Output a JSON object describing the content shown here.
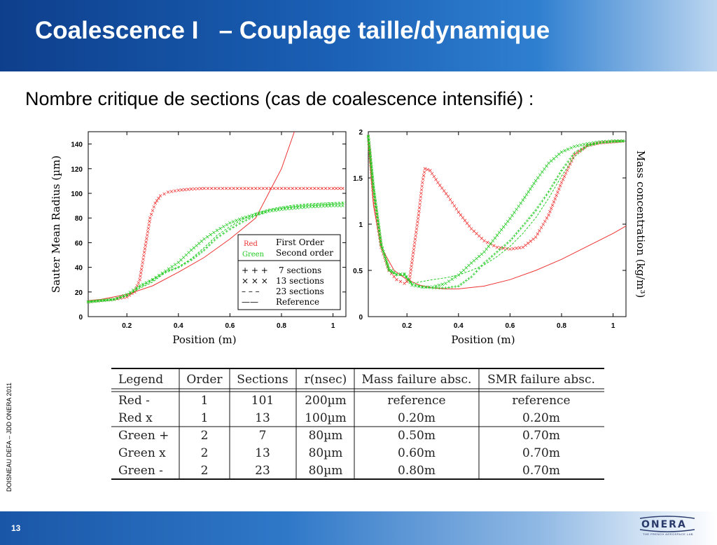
{
  "slide": {
    "title": "Coalescence I   – Couplage taille/dynamique",
    "subtitle": "Nombre critique de sections (cas de coalescence intensifié) :",
    "side_note": "DOISNEAU DEFA – JDD ONERA 2011",
    "page_number": "13",
    "logo_text": "ONERA",
    "logo_tagline": "THE FRENCH AEROSPACE LAB"
  },
  "colors": {
    "red": "#ee3333",
    "green": "#22cc22",
    "header_blue": "#1a5fb4"
  },
  "chart_data": [
    {
      "type": "line",
      "xlabel": "Position (m)",
      "ylabel": "Sauter Mean Radius (µm)",
      "xlim": [
        0.05,
        1.05
      ],
      "ylim": [
        0,
        150
      ],
      "xticks": [
        "0.2",
        "0.4",
        "0.6",
        "0.8",
        "1"
      ],
      "yticks": [
        "0",
        "20",
        "40",
        "60",
        "80",
        "100",
        "120",
        "140"
      ],
      "legend": {
        "color_rows": [
          {
            "key": "Red",
            "label": "First Order",
            "color": "#ee3333"
          },
          {
            "key": "Green",
            "label": "Second order",
            "color": "#22cc22"
          }
        ],
        "marker_rows": [
          {
            "symbol": "+ + +",
            "label": "7 sections"
          },
          {
            "symbol": "× × ×",
            "label": "13 sections"
          },
          {
            "symbol": "– – –",
            "label": "23 sections"
          },
          {
            "symbol": "——",
            "label": "Reference"
          }
        ]
      },
      "series": [
        {
          "color": "#ee3333",
          "style": "line",
          "x": [
            0.05,
            0.1,
            0.2,
            0.3,
            0.4,
            0.5,
            0.6,
            0.7,
            0.8,
            0.85
          ],
          "y": [
            13,
            14,
            18,
            25,
            36,
            48,
            63,
            80,
            120,
            150
          ]
        },
        {
          "color": "#ee3333",
          "style": "x",
          "x": [
            0.05,
            0.1,
            0.15,
            0.2,
            0.23,
            0.25,
            0.27,
            0.29,
            0.31,
            0.33,
            0.36,
            0.4,
            0.45,
            0.5,
            0.6,
            0.7,
            0.8,
            0.9,
            1.0,
            1.05
          ],
          "y": [
            12,
            13,
            14,
            16,
            20,
            30,
            55,
            80,
            92,
            98,
            101,
            102.5,
            103.5,
            104,
            104,
            104,
            104,
            104,
            104,
            104
          ]
        },
        {
          "color": "#22cc22",
          "style": "+",
          "x": [
            0.05,
            0.1,
            0.15,
            0.2,
            0.25,
            0.3,
            0.35,
            0.4,
            0.45,
            0.5,
            0.55,
            0.6,
            0.65,
            0.7,
            0.75,
            0.8,
            0.85,
            0.9,
            0.95,
            1.0,
            1.05
          ],
          "y": [
            12,
            13,
            14,
            17,
            24,
            30,
            36,
            40,
            46,
            54,
            64,
            71,
            77,
            82,
            86,
            88,
            89.5,
            90.5,
            91,
            91.5,
            92
          ]
        },
        {
          "color": "#22cc22",
          "style": "x",
          "x": [
            0.05,
            0.1,
            0.15,
            0.2,
            0.25,
            0.3,
            0.35,
            0.4,
            0.45,
            0.5,
            0.55,
            0.6,
            0.65,
            0.7,
            0.75,
            0.8,
            0.85,
            0.9,
            0.95,
            1.0,
            1.05
          ],
          "y": [
            12,
            13,
            14,
            18,
            25,
            30,
            37,
            44,
            54,
            63,
            70,
            76,
            80,
            83,
            85.5,
            87,
            88,
            89,
            89.5,
            90,
            90
          ]
        },
        {
          "color": "#22cc22",
          "style": "dash",
          "x": [
            0.05,
            0.1,
            0.15,
            0.2,
            0.25,
            0.3,
            0.35,
            0.4,
            0.45,
            0.5,
            0.55,
            0.6,
            0.65,
            0.7,
            0.75,
            0.8,
            0.85,
            0.9,
            0.95,
            1.0,
            1.05
          ],
          "y": [
            12,
            13,
            14,
            17,
            23,
            28,
            36,
            40,
            47,
            56,
            66,
            73,
            79,
            84,
            87,
            89,
            90.5,
            91.5,
            92,
            92.5,
            93
          ]
        }
      ]
    },
    {
      "type": "line",
      "xlabel": "Position (m)",
      "ylabel": "Mass concentration (kg/m³)",
      "xlim": [
        0.05,
        1.05
      ],
      "ylim": [
        0,
        2
      ],
      "xticks": [
        "0.2",
        "0.4",
        "0.6",
        "0.8",
        "1"
      ],
      "yticks": [
        "0",
        "0.5",
        "1",
        "1.5",
        "2"
      ],
      "series": [
        {
          "color": "#ee3333",
          "style": "line",
          "x": [
            0.05,
            0.07,
            0.1,
            0.15,
            0.2,
            0.25,
            0.3,
            0.35,
            0.4,
            0.5,
            0.6,
            0.7,
            0.8,
            0.9,
            1.0,
            1.05
          ],
          "y": [
            1.9,
            1.2,
            0.75,
            0.5,
            0.4,
            0.34,
            0.31,
            0.3,
            0.3,
            0.33,
            0.4,
            0.5,
            0.62,
            0.76,
            0.9,
            0.98
          ]
        },
        {
          "color": "#ee3333",
          "style": "x",
          "x": [
            0.05,
            0.07,
            0.1,
            0.13,
            0.16,
            0.19,
            0.21,
            0.23,
            0.245,
            0.26,
            0.27,
            0.29,
            0.32,
            0.36,
            0.4,
            0.45,
            0.5,
            0.55,
            0.6,
            0.65,
            0.7,
            0.75,
            0.8,
            0.85,
            0.9,
            0.95,
            1.0,
            1.05
          ],
          "y": [
            1.95,
            1.3,
            0.75,
            0.5,
            0.4,
            0.36,
            0.4,
            0.8,
            1.1,
            1.45,
            1.6,
            1.58,
            1.45,
            1.3,
            1.13,
            0.95,
            0.82,
            0.75,
            0.73,
            0.75,
            0.86,
            1.1,
            1.45,
            1.75,
            1.85,
            1.88,
            1.89,
            1.9
          ]
        },
        {
          "color": "#22cc22",
          "style": "+",
          "x": [
            0.05,
            0.07,
            0.1,
            0.13,
            0.16,
            0.19,
            0.22,
            0.26,
            0.3,
            0.35,
            0.4,
            0.45,
            0.5,
            0.55,
            0.6,
            0.65,
            0.7,
            0.75,
            0.8,
            0.85,
            0.9,
            0.95,
            1.0,
            1.05
          ],
          "y": [
            1.95,
            1.4,
            0.78,
            0.5,
            0.45,
            0.46,
            0.35,
            0.32,
            0.31,
            0.31,
            0.33,
            0.43,
            0.58,
            0.7,
            0.82,
            0.98,
            1.15,
            1.35,
            1.58,
            1.77,
            1.85,
            1.88,
            1.89,
            1.9
          ]
        },
        {
          "color": "#22cc22",
          "style": "x",
          "x": [
            0.05,
            0.07,
            0.1,
            0.13,
            0.16,
            0.19,
            0.22,
            0.26,
            0.3,
            0.35,
            0.4,
            0.45,
            0.5,
            0.55,
            0.6,
            0.65,
            0.7,
            0.75,
            0.8,
            0.85,
            0.9,
            0.95,
            1.0,
            1.05
          ],
          "y": [
            1.95,
            1.4,
            0.78,
            0.52,
            0.46,
            0.46,
            0.34,
            0.32,
            0.32,
            0.36,
            0.45,
            0.58,
            0.7,
            0.88,
            1.06,
            1.26,
            1.47,
            1.66,
            1.78,
            1.84,
            1.87,
            1.89,
            1.9,
            1.9
          ]
        },
        {
          "color": "#22cc22",
          "style": "dash",
          "x": [
            0.05,
            0.07,
            0.1,
            0.13,
            0.16,
            0.19,
            0.22,
            0.26,
            0.3,
            0.35,
            0.4,
            0.45,
            0.5,
            0.55,
            0.6,
            0.65,
            0.7,
            0.75,
            0.8,
            0.85,
            0.9,
            0.95,
            1.0,
            1.05
          ],
          "y": [
            1.95,
            1.4,
            0.78,
            0.5,
            0.45,
            0.44,
            0.36,
            0.38,
            0.4,
            0.42,
            0.45,
            0.5,
            0.56,
            0.65,
            0.76,
            0.9,
            1.07,
            1.28,
            1.52,
            1.73,
            1.84,
            1.88,
            1.9,
            1.9
          ]
        }
      ]
    }
  ],
  "table": {
    "headers": [
      "Legend",
      "Order",
      "Sections",
      "r(nsec)",
      "Mass failure absc.",
      "SMR failure absc."
    ],
    "rows": [
      [
        "Red -",
        "1",
        "101",
        "200µm",
        "reference",
        "reference"
      ],
      [
        "Red x",
        "1",
        "13",
        "100µm",
        "0.20m",
        "0.20m"
      ],
      [
        "Green +",
        "2",
        "7",
        "80µm",
        "0.50m",
        "0.70m"
      ],
      [
        "Green x",
        "2",
        "13",
        "80µm",
        "0.60m",
        "0.70m"
      ],
      [
        "Green -",
        "2",
        "23",
        "80µm",
        "0.80m",
        "0.70m"
      ]
    ]
  }
}
